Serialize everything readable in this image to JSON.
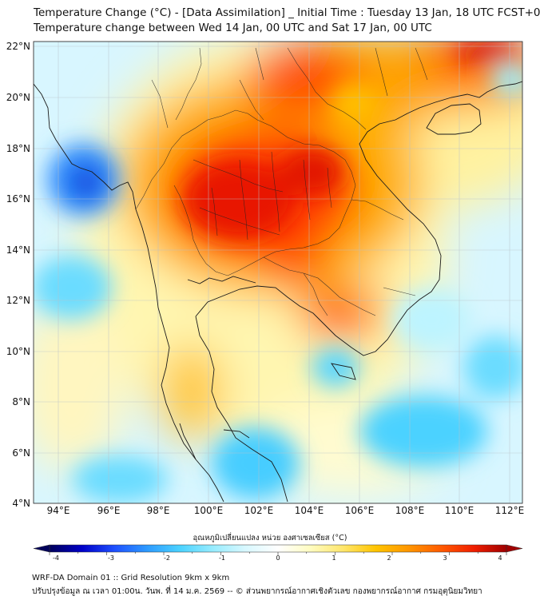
{
  "title": {
    "line1": "Temperature Change (°C) - [Data Assimilation] _ Initial Time : Tuesday 13 Jan, 18 UTC FCST+072",
    "line2": "Temperature change between Wed 14 Jan, 00 UTC and Sat 17 Jan, 00 UTC"
  },
  "map": {
    "lat_labels": [
      "22°N",
      "20°N",
      "18°N",
      "16°N",
      "14°N",
      "12°N",
      "10°N",
      "8°N",
      "6°N",
      "4°N"
    ],
    "lon_labels": [
      "94°E",
      "96°E",
      "98°E",
      "100°E",
      "102°E",
      "104°E",
      "106°E",
      "108°E",
      "110°E",
      "112°E"
    ],
    "lat_range": [
      4,
      22.2
    ],
    "lon_range": [
      93,
      112.5
    ],
    "warm_regions": [
      {
        "label": "Central Thailand / Laos / Cambodia",
        "lon": 101.8,
        "lat": 16.3,
        "value": 3.2
      },
      {
        "label": "Northern Laos",
        "lon": 103.5,
        "lat": 19.5,
        "value": 3.0
      },
      {
        "label": "South China",
        "lon": 110.5,
        "lat": 21.5,
        "value": 3.8
      },
      {
        "label": "Cambodia south",
        "lon": 104.5,
        "lat": 11.2,
        "value": 3.0
      },
      {
        "label": "Gulf coast",
        "lon": 103.0,
        "lat": 13.0,
        "value": 2.8
      }
    ],
    "cold_regions": [
      {
        "label": "Andaman Sea / Myanmar coast",
        "lon": 95.0,
        "lat": 17.0,
        "value": -2.5
      },
      {
        "label": "South China Sea",
        "lon": 109.0,
        "lat": 9.0,
        "value": -1.3
      },
      {
        "label": "Malay Peninsula east",
        "lon": 103.0,
        "lat": 5.5,
        "value": -1.3
      },
      {
        "label": "Andaman Sea south",
        "lon": 94.5,
        "lat": 12.5,
        "value": -1.0
      }
    ]
  },
  "colorbar": {
    "title": "อุณหภูมิเปลี่ยนแปลง หน่วย องศาเซลเซียส (°C)",
    "ticks": [
      "-4",
      "-3",
      "-2",
      "-1",
      "0",
      "1",
      "2",
      "3",
      "4"
    ],
    "min": -4,
    "max": 4,
    "colors": [
      "#00005a",
      "#0000c8",
      "#1e50ff",
      "#2d9bff",
      "#4bd2ff",
      "#96ecff",
      "#d8f8ff",
      "#ffffff",
      "#fffcc0",
      "#ffe66b",
      "#ffc400",
      "#ff9600",
      "#ff5a00",
      "#f01e00",
      "#a00000"
    ]
  },
  "footer": {
    "line1": "WRF-DA Domain 01 :: Grid Resolution 9km x 9km",
    "line2": "ปรับปรุงข้อมูล ณ เวลา 01:00น. วันพ. ที่ 14 ม.ค. 2569 -- © ส่วนพยากรณ์อากาศเชิงตัวเลข กองพยากรณ์อากาศ กรมอุตุนิยมวิทยา"
  }
}
